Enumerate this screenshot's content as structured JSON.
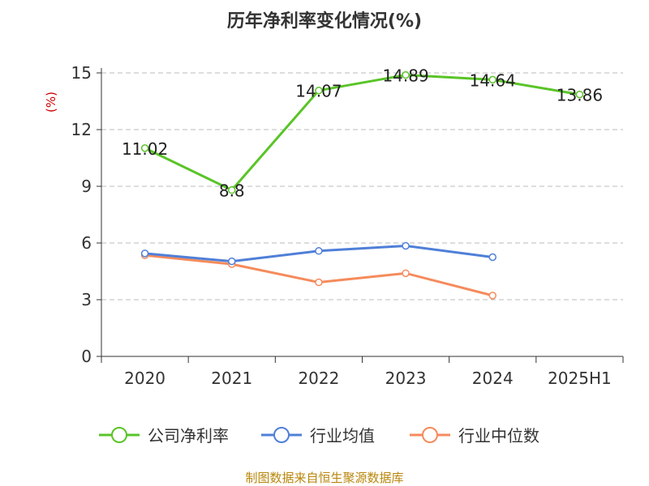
{
  "chart_data": {
    "type": "line",
    "title": "历年净利率变化情况(%)",
    "ylabel": "(%)",
    "xlabel": "",
    "categories": [
      "2020",
      "2021",
      "2022",
      "2023",
      "2024",
      "2025H1"
    ],
    "ylim": [
      0,
      15
    ],
    "yticks": [
      0,
      3,
      6,
      9,
      12,
      15
    ],
    "grid": true,
    "legend_position": "bottom",
    "series": [
      {
        "name": "公司净利率",
        "color": "#5ac428",
        "labels_shown": true,
        "values": [
          11.02,
          8.8,
          14.07,
          14.89,
          14.64,
          13.86
        ],
        "value_labels": [
          "11.02",
          "8.8",
          "14.07",
          "14.89",
          "14.64",
          "13.86"
        ]
      },
      {
        "name": "行业均值",
        "color": "#4f7fd8",
        "labels_shown": false,
        "values": [
          5.45,
          5.03,
          5.58,
          5.85,
          5.25,
          null
        ]
      },
      {
        "name": "行业中位数",
        "color": "#f58b5c",
        "labels_shown": false,
        "values": [
          5.35,
          4.88,
          3.92,
          4.4,
          3.22,
          null
        ]
      }
    ]
  },
  "footer": {
    "source": "制图数据来自恒生聚源数据库"
  }
}
